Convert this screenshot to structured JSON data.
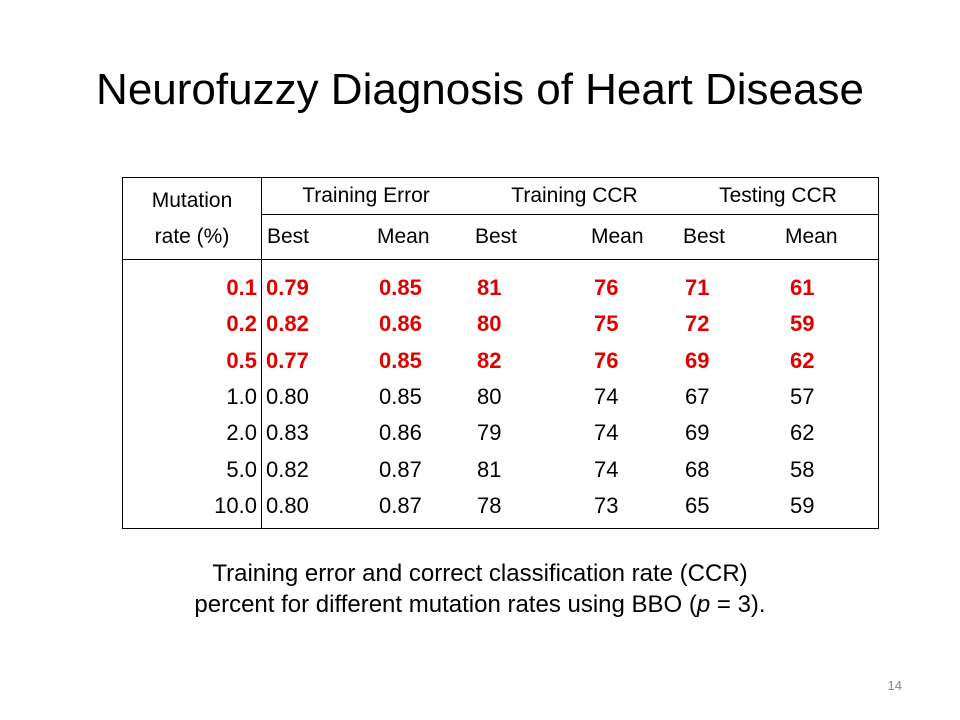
{
  "slide": {
    "title": "Neurofuzzy Diagnosis of Heart Disease",
    "caption_line1": "Training error and correct classification rate (CCR)",
    "caption_line2_pre": "percent for different mutation rates using BBO (",
    "caption_line2_var": "p",
    "caption_line2_post": " = 3).",
    "page_number": "14"
  },
  "table": {
    "row_header_line1": "Mutation",
    "row_header_line2": "rate (%)",
    "groups": [
      "Training Error",
      "Training CCR",
      "Testing CCR"
    ],
    "subheaders": [
      "Best",
      "Mean",
      "Best",
      "Mean",
      "Best",
      "Mean"
    ],
    "rows": [
      {
        "rate": "0.1",
        "te_best": "0.79",
        "te_mean": "0.85",
        "tr_best": "81",
        "tr_mean": "76",
        "ts_best": "71",
        "ts_mean": "61",
        "highlight": true
      },
      {
        "rate": "0.2",
        "te_best": "0.82",
        "te_mean": "0.86",
        "tr_best": "80",
        "tr_mean": "75",
        "ts_best": "72",
        "ts_mean": "59",
        "highlight": true
      },
      {
        "rate": "0.5",
        "te_best": "0.77",
        "te_mean": "0.85",
        "tr_best": "82",
        "tr_mean": "76",
        "ts_best": "69",
        "ts_mean": "62",
        "highlight": true
      },
      {
        "rate": "1.0",
        "te_best": "0.80",
        "te_mean": "0.85",
        "tr_best": "80",
        "tr_mean": "74",
        "ts_best": "67",
        "ts_mean": "57",
        "highlight": false
      },
      {
        "rate": "2.0",
        "te_best": "0.83",
        "te_mean": "0.86",
        "tr_best": "79",
        "tr_mean": "74",
        "ts_best": "69",
        "ts_mean": "62",
        "highlight": false
      },
      {
        "rate": "5.0",
        "te_best": "0.82",
        "te_mean": "0.87",
        "tr_best": "81",
        "tr_mean": "74",
        "ts_best": "68",
        "ts_mean": "58",
        "highlight": false
      },
      {
        "rate": "10.0",
        "te_best": "0.80",
        "te_mean": "0.87",
        "tr_best": "78",
        "tr_mean": "73",
        "ts_best": "65",
        "ts_mean": "59",
        "highlight": false
      }
    ],
    "highlight_color": "#e00000"
  }
}
